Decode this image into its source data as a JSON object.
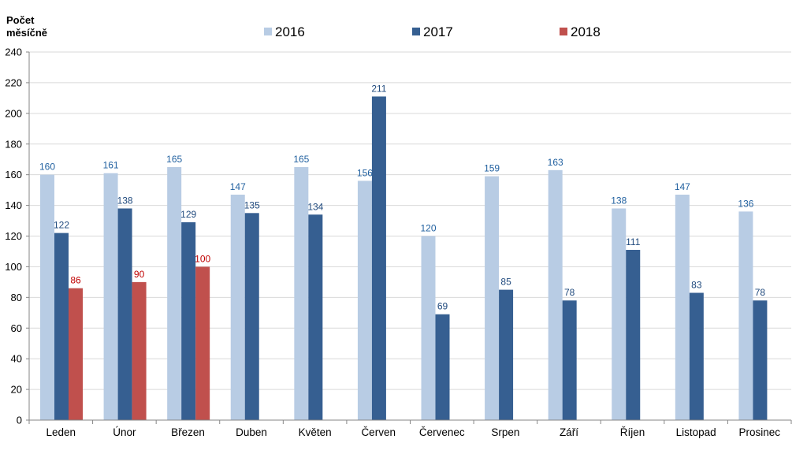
{
  "chart_data": {
    "type": "bar",
    "ylabel_lines": [
      "Počet",
      "měsíčně"
    ],
    "ylim": [
      0,
      240
    ],
    "yticks": [
      0,
      20,
      40,
      60,
      80,
      100,
      120,
      140,
      160,
      180,
      200,
      220,
      240
    ],
    "grid": true,
    "legend_position": "top",
    "categories": [
      "Leden",
      "Únor",
      "Březen",
      "Duben",
      "Květen",
      "Červen",
      "Červenec",
      "Srpen",
      "Září",
      "Říjen",
      "Listopad",
      "Prosinec"
    ],
    "series": [
      {
        "name": "2016",
        "color": "#b8cce4",
        "label_color": "#1f5f9f",
        "values": [
          160,
          161,
          165,
          147,
          165,
          156,
          120,
          159,
          163,
          138,
          147,
          136
        ]
      },
      {
        "name": "2017",
        "color": "#365f91",
        "label_color": "#1f497d",
        "values": [
          122,
          138,
          129,
          135,
          134,
          211,
          69,
          85,
          78,
          111,
          83,
          78
        ]
      },
      {
        "name": "2018",
        "color": "#c0504d",
        "label_color": "#c00000",
        "values": [
          86,
          90,
          100,
          null,
          null,
          null,
          null,
          null,
          null,
          null,
          null,
          null
        ]
      }
    ]
  }
}
